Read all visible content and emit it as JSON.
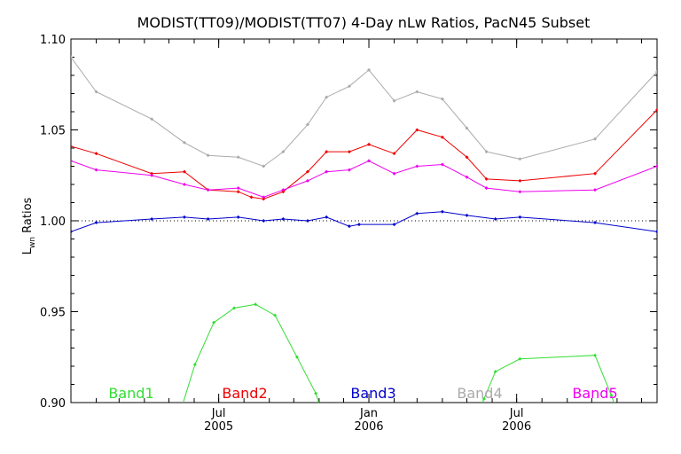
{
  "chart_data": {
    "type": "line",
    "title": "MODIST(TT09)/MODIST(TT07) 4-Day nLw Ratios, PacN45 Subset",
    "ylabel": "Lwn Ratios",
    "ylabel_main": "L",
    "ylabel_sub": "wn",
    "ylabel_rest": " Ratios",
    "xlabel": "",
    "ylim": [
      0.9,
      1.1
    ],
    "xlim": [
      "2005-01-01",
      "2006-12-20"
    ],
    "yticks": [
      "0.90",
      "0.95",
      "1.00",
      "1.05",
      "1.10"
    ],
    "ytick_values": [
      0.9,
      0.95,
      1.0,
      1.05,
      1.1
    ],
    "xticks": [
      {
        "date": "2005-07-01",
        "month": "Jul",
        "year": "2005"
      },
      {
        "date": "2006-01-01",
        "month": "Jan",
        "year": "2006"
      },
      {
        "date": "2006-07-01",
        "month": "Jul",
        "year": "2006"
      }
    ],
    "reference_line": 1.0,
    "series": [
      {
        "name": "Band1",
        "color": "#33dd33",
        "points": [
          [
            "2005-05-15",
            0.895
          ],
          [
            "2005-06-02",
            0.921
          ],
          [
            "2005-06-25",
            0.944
          ],
          [
            "2005-07-20",
            0.952
          ],
          [
            "2005-08-15",
            0.954
          ],
          [
            "2005-09-08",
            0.948
          ],
          [
            "2005-10-05",
            0.925
          ],
          [
            "2005-10-28",
            0.905
          ],
          [
            "2005-11-10",
            0.887
          ],
          [
            "2006-05-01",
            0.882
          ],
          [
            "2006-05-22",
            0.902
          ],
          [
            "2006-06-05",
            0.917
          ],
          [
            "2006-07-05",
            0.924
          ],
          [
            "2006-10-05",
            0.926
          ],
          [
            "2006-10-25",
            0.904
          ],
          [
            "2006-11-15",
            0.878
          ]
        ]
      },
      {
        "name": "Band2",
        "color": "#ee0000",
        "points": [
          [
            "2005-01-01",
            1.041
          ],
          [
            "2005-02-01",
            1.037
          ],
          [
            "2005-04-10",
            1.026
          ],
          [
            "2005-05-20",
            1.027
          ],
          [
            "2005-06-18",
            1.017
          ],
          [
            "2005-07-25",
            1.016
          ],
          [
            "2005-08-10",
            1.013
          ],
          [
            "2005-08-25",
            1.012
          ],
          [
            "2005-09-18",
            1.016
          ],
          [
            "2005-10-18",
            1.027
          ],
          [
            "2005-11-10",
            1.038
          ],
          [
            "2005-12-08",
            1.038
          ],
          [
            "2006-01-01",
            1.042
          ],
          [
            "2006-02-01",
            1.037
          ],
          [
            "2006-03-01",
            1.05
          ],
          [
            "2006-04-01",
            1.046
          ],
          [
            "2006-05-01",
            1.035
          ],
          [
            "2006-05-25",
            1.023
          ],
          [
            "2006-07-05",
            1.022
          ],
          [
            "2006-10-05",
            1.026
          ],
          [
            "2006-12-20",
            1.061
          ]
        ]
      },
      {
        "name": "Band3",
        "color": "#0000cc",
        "points": [
          [
            "2005-01-01",
            0.994
          ],
          [
            "2005-02-01",
            0.999
          ],
          [
            "2005-04-10",
            1.001
          ],
          [
            "2005-05-20",
            1.002
          ],
          [
            "2005-06-18",
            1.001
          ],
          [
            "2005-07-25",
            1.002
          ],
          [
            "2005-08-25",
            1.0
          ],
          [
            "2005-09-18",
            1.001
          ],
          [
            "2005-10-18",
            1.0
          ],
          [
            "2005-11-10",
            1.002
          ],
          [
            "2005-12-08",
            0.997
          ],
          [
            "2005-12-20",
            0.998
          ],
          [
            "2006-02-01",
            0.998
          ],
          [
            "2006-03-01",
            1.004
          ],
          [
            "2006-04-01",
            1.005
          ],
          [
            "2006-05-01",
            1.003
          ],
          [
            "2006-06-05",
            1.001
          ],
          [
            "2006-07-05",
            1.002
          ],
          [
            "2006-10-05",
            0.999
          ],
          [
            "2006-12-20",
            0.994
          ]
        ]
      },
      {
        "name": "Band4",
        "color": "#aaaaaa",
        "points": [
          [
            "2005-01-01",
            1.09
          ],
          [
            "2005-02-01",
            1.071
          ],
          [
            "2005-04-10",
            1.056
          ],
          [
            "2005-05-20",
            1.043
          ],
          [
            "2005-06-18",
            1.036
          ],
          [
            "2005-07-25",
            1.035
          ],
          [
            "2005-08-25",
            1.03
          ],
          [
            "2005-09-18",
            1.038
          ],
          [
            "2005-10-18",
            1.053
          ],
          [
            "2005-11-10",
            1.068
          ],
          [
            "2005-12-08",
            1.074
          ],
          [
            "2006-01-01",
            1.083
          ],
          [
            "2006-02-01",
            1.066
          ],
          [
            "2006-03-01",
            1.071
          ],
          [
            "2006-04-01",
            1.067
          ],
          [
            "2006-05-01",
            1.051
          ],
          [
            "2006-05-25",
            1.038
          ],
          [
            "2006-07-05",
            1.034
          ],
          [
            "2006-10-05",
            1.045
          ],
          [
            "2006-12-20",
            1.082
          ]
        ]
      },
      {
        "name": "Band5",
        "color": "#ee00ee",
        "points": [
          [
            "2005-01-01",
            1.033
          ],
          [
            "2005-02-01",
            1.028
          ],
          [
            "2005-04-10",
            1.025
          ],
          [
            "2005-05-20",
            1.02
          ],
          [
            "2005-06-18",
            1.017
          ],
          [
            "2005-07-25",
            1.018
          ],
          [
            "2005-08-25",
            1.013
          ],
          [
            "2005-09-18",
            1.017
          ],
          [
            "2005-10-18",
            1.022
          ],
          [
            "2005-11-10",
            1.027
          ],
          [
            "2005-12-08",
            1.028
          ],
          [
            "2006-01-01",
            1.033
          ],
          [
            "2006-02-01",
            1.026
          ],
          [
            "2006-03-01",
            1.03
          ],
          [
            "2006-04-01",
            1.031
          ],
          [
            "2006-05-01",
            1.024
          ],
          [
            "2006-05-25",
            1.018
          ],
          [
            "2006-07-05",
            1.016
          ],
          [
            "2006-10-05",
            1.017
          ],
          [
            "2006-12-20",
            1.03
          ]
        ]
      }
    ]
  }
}
